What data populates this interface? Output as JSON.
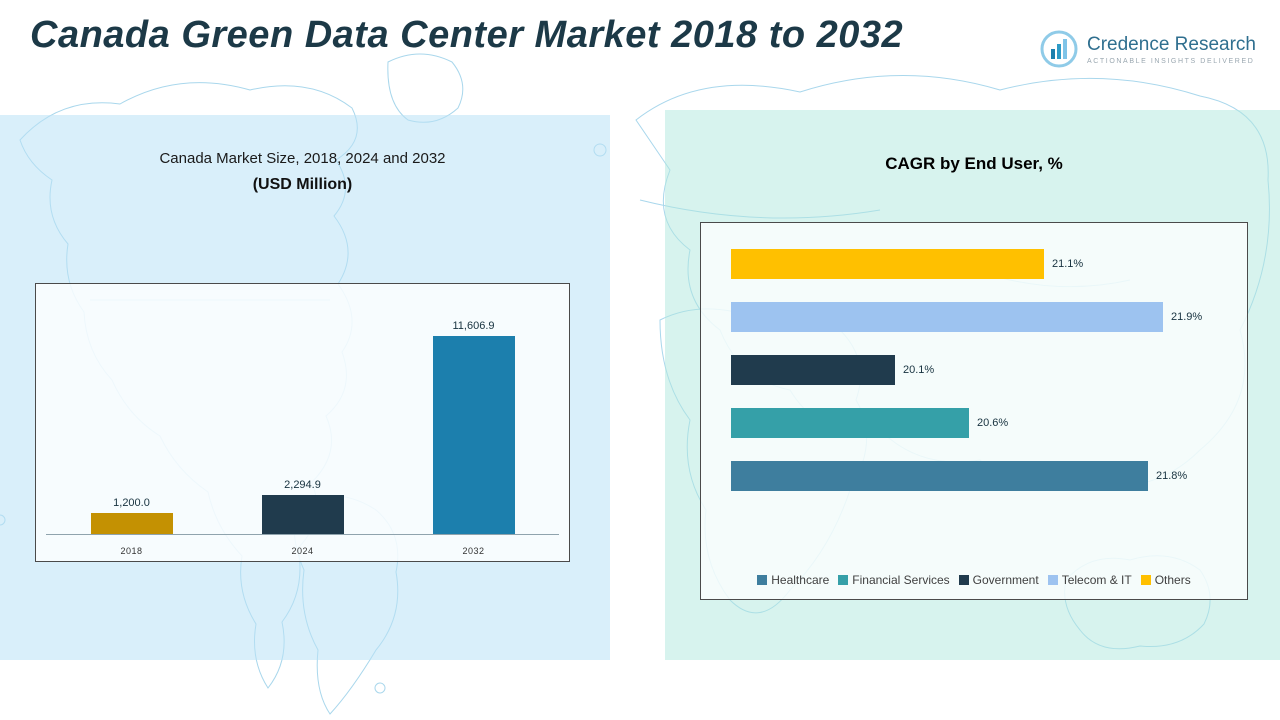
{
  "header": {
    "title": "Canada Green Data Center Market 2018 to 2032",
    "logo": {
      "name": "Credence Research",
      "tagline": "Actionable Insights Delivered"
    }
  },
  "chart_data": [
    {
      "type": "bar",
      "orientation": "vertical",
      "title": "Canada Market Size, 2018, 2024 and 2032",
      "subtitle": "(USD Million)",
      "categories": [
        "2018",
        "2024",
        "2032"
      ],
      "values": [
        1200.0,
        2294.9,
        11606.9
      ],
      "value_labels": [
        "1,200.0",
        "2,294.9",
        "11,606.9"
      ],
      "bar_colors": [
        "#C49102",
        "#203B4D",
        "#1C7FAD"
      ],
      "ylim": [
        0,
        12000
      ],
      "grid": false,
      "legend_position": "none"
    },
    {
      "type": "bar",
      "orientation": "horizontal",
      "title": "CAGR by End User, %",
      "categories": [
        "Others",
        "Telecom & IT",
        "Government",
        "Financial Services",
        "Healthcare"
      ],
      "values": [
        21.1,
        21.9,
        20.1,
        20.6,
        21.8
      ],
      "value_labels": [
        "21.1%",
        "21.9%",
        "20.1%",
        "20.6%",
        "21.8%"
      ],
      "bar_colors": [
        "#FFC000",
        "#9DC3F0",
        "#203B4D",
        "#35A0A8",
        "#3E7E9E"
      ],
      "xlim": [
        19.0,
        22.0
      ],
      "grid": false,
      "legend_position": "bottom",
      "legend": [
        {
          "label": "Healthcare",
          "color": "#3E7E9E"
        },
        {
          "label": "Financial Services",
          "color": "#35A0A8"
        },
        {
          "label": "Government",
          "color": "#203B4D"
        },
        {
          "label": "Telecom & IT",
          "color": "#9DC3F0"
        },
        {
          "label": "Others",
          "color": "#FFC000"
        }
      ]
    }
  ]
}
